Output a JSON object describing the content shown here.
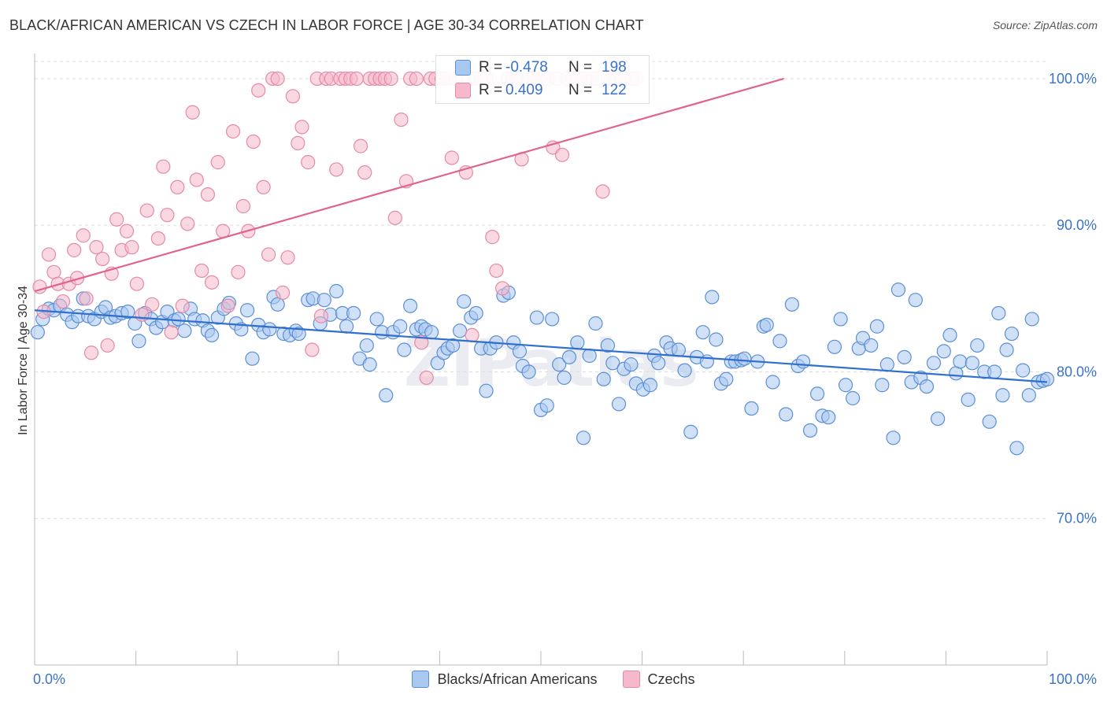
{
  "title": "BLACK/AFRICAN AMERICAN VS CZECH IN LABOR FORCE | AGE 30-34 CORRELATION CHART",
  "source": "Source: ZipAtlas.com",
  "watermark": "ZIPatlas",
  "colors": {
    "blue_fill": "#a9c8f0",
    "blue_stroke": "#5b8fd6",
    "blue_line": "#2f6fcf",
    "pink_fill": "#f6b8cb",
    "pink_stroke": "#e58aa6",
    "pink_line": "#e0648c",
    "tick_label": "#3a72c8",
    "grid": "#dddddd"
  },
  "stats": {
    "row1": {
      "r_label": "R =",
      "r_value": "-0.478",
      "n_label": "N =",
      "n_value": "198"
    },
    "row2": {
      "r_label": "R =",
      "r_value": "0.409",
      "n_label": "N =",
      "n_value": "122"
    }
  },
  "chart_data": {
    "type": "scatter",
    "title": "BLACK/AFRICAN AMERICAN VS CZECH IN LABOR FORCE | AGE 30-34 CORRELATION CHART",
    "xlabel": "",
    "ylabel": "In Labor Force | Age 30-34",
    "xlim": [
      0,
      100
    ],
    "ylim": [
      60,
      101.5
    ],
    "x_tick_labels": [
      "0.0%",
      "100.0%"
    ],
    "y_ticks": [
      70,
      80,
      90,
      100
    ],
    "y_tick_labels": [
      "70.0%",
      "80.0%",
      "90.0%",
      "100.0%"
    ],
    "grid": true,
    "legend_position": "bottom",
    "series": [
      {
        "name": "Blacks/African Americans",
        "color": "#a9c8f0",
        "trend": {
          "x": [
            0,
            100
          ],
          "y": [
            84.2,
            79.3
          ]
        },
        "points": [
          [
            0.3,
            82.7
          ],
          [
            0.8,
            83.6
          ],
          [
            1.4,
            84.3
          ],
          [
            1.9,
            84.2
          ],
          [
            2.5,
            84.5
          ],
          [
            3.2,
            83.9
          ],
          [
            3.7,
            83.4
          ],
          [
            4.3,
            83.8
          ],
          [
            4.8,
            85.0
          ],
          [
            5.3,
            83.8
          ],
          [
            5.9,
            83.6
          ],
          [
            6.6,
            84.1
          ],
          [
            7.0,
            84.4
          ],
          [
            7.5,
            83.7
          ],
          [
            8.0,
            83.8
          ],
          [
            8.6,
            84.0
          ],
          [
            9.2,
            84.1
          ],
          [
            9.9,
            83.3
          ],
          [
            10.3,
            82.1
          ],
          [
            10.9,
            84.0
          ],
          [
            11.5,
            83.6
          ],
          [
            12.0,
            83.0
          ],
          [
            12.6,
            83.4
          ],
          [
            13.1,
            84.1
          ],
          [
            13.8,
            83.5
          ],
          [
            14.2,
            83.6
          ],
          [
            14.8,
            82.8
          ],
          [
            15.4,
            84.3
          ],
          [
            15.8,
            83.6
          ],
          [
            16.6,
            83.5
          ],
          [
            17.1,
            82.8
          ],
          [
            17.5,
            82.5
          ],
          [
            18.1,
            83.7
          ],
          [
            18.7,
            84.3
          ],
          [
            19.2,
            84.7
          ],
          [
            19.9,
            83.3
          ],
          [
            20.4,
            82.9
          ],
          [
            21.0,
            84.2
          ],
          [
            21.5,
            80.9
          ],
          [
            22.1,
            83.2
          ],
          [
            22.6,
            82.7
          ],
          [
            23.2,
            82.9
          ],
          [
            23.6,
            85.1
          ],
          [
            24.0,
            84.6
          ],
          [
            24.6,
            82.6
          ],
          [
            25.2,
            82.5
          ],
          [
            25.8,
            82.8
          ],
          [
            26.1,
            82.6
          ],
          [
            27.0,
            84.9
          ],
          [
            27.5,
            85.0
          ],
          [
            28.2,
            83.3
          ],
          [
            28.6,
            84.9
          ],
          [
            29.2,
            83.9
          ],
          [
            29.8,
            85.5
          ],
          [
            30.4,
            84.0
          ],
          [
            30.8,
            83.1
          ],
          [
            31.5,
            84.0
          ],
          [
            32.1,
            80.9
          ],
          [
            32.8,
            81.8
          ],
          [
            33.1,
            80.5
          ],
          [
            33.8,
            83.6
          ],
          [
            34.3,
            82.7
          ],
          [
            34.7,
            78.4
          ],
          [
            35.4,
            82.7
          ],
          [
            36.1,
            83.1
          ],
          [
            36.5,
            81.5
          ],
          [
            37.1,
            84.5
          ],
          [
            37.7,
            82.9
          ],
          [
            38.2,
            83.1
          ],
          [
            38.6,
            82.9
          ],
          [
            39.2,
            82.7
          ],
          [
            39.8,
            80.6
          ],
          [
            40.4,
            81.3
          ],
          [
            40.8,
            81.6
          ],
          [
            41.3,
            81.8
          ],
          [
            42.0,
            82.8
          ],
          [
            42.4,
            84.8
          ],
          [
            43.1,
            83.7
          ],
          [
            43.6,
            84.0
          ],
          [
            44.1,
            81.6
          ],
          [
            44.6,
            78.7
          ],
          [
            45.0,
            81.6
          ],
          [
            45.6,
            82.0
          ],
          [
            46.3,
            85.2
          ],
          [
            46.8,
            85.4
          ],
          [
            47.3,
            82.0
          ],
          [
            47.9,
            81.4
          ],
          [
            48.2,
            80.4
          ],
          [
            48.8,
            80.0
          ],
          [
            49.6,
            83.7
          ],
          [
            50.0,
            77.4
          ],
          [
            50.6,
            77.7
          ],
          [
            51.1,
            83.6
          ],
          [
            51.8,
            80.5
          ],
          [
            52.3,
            79.6
          ],
          [
            52.8,
            81.0
          ],
          [
            53.6,
            82.0
          ],
          [
            54.2,
            75.5
          ],
          [
            54.8,
            81.1
          ],
          [
            55.4,
            83.3
          ],
          [
            56.2,
            79.5
          ],
          [
            56.6,
            81.8
          ],
          [
            57.1,
            80.6
          ],
          [
            57.7,
            77.8
          ],
          [
            58.2,
            80.2
          ],
          [
            58.9,
            80.5
          ],
          [
            59.4,
            79.2
          ],
          [
            60.1,
            78.8
          ],
          [
            60.8,
            79.1
          ],
          [
            61.2,
            81.1
          ],
          [
            61.6,
            80.6
          ],
          [
            62.4,
            82.0
          ],
          [
            62.8,
            81.6
          ],
          [
            63.6,
            81.5
          ],
          [
            64.2,
            80.1
          ],
          [
            64.8,
            75.9
          ],
          [
            65.4,
            81.0
          ],
          [
            66.0,
            82.7
          ],
          [
            66.4,
            80.7
          ],
          [
            66.9,
            85.1
          ],
          [
            67.3,
            82.2
          ],
          [
            67.8,
            79.2
          ],
          [
            68.3,
            79.5
          ],
          [
            68.8,
            80.7
          ],
          [
            69.2,
            80.7
          ],
          [
            69.8,
            80.8
          ],
          [
            70.1,
            80.9
          ],
          [
            70.8,
            77.5
          ],
          [
            71.4,
            80.7
          ],
          [
            72.0,
            83.1
          ],
          [
            72.3,
            83.2
          ],
          [
            72.9,
            79.3
          ],
          [
            73.6,
            82.1
          ],
          [
            74.2,
            77.1
          ],
          [
            74.8,
            84.6
          ],
          [
            75.4,
            80.4
          ],
          [
            75.9,
            80.7
          ],
          [
            76.6,
            76.0
          ],
          [
            77.3,
            78.5
          ],
          [
            77.8,
            77.0
          ],
          [
            78.4,
            76.9
          ],
          [
            79.0,
            81.7
          ],
          [
            79.6,
            83.6
          ],
          [
            80.1,
            79.1
          ],
          [
            80.8,
            78.2
          ],
          [
            81.4,
            81.6
          ],
          [
            81.8,
            82.3
          ],
          [
            82.6,
            81.8
          ],
          [
            83.2,
            83.1
          ],
          [
            83.7,
            79.1
          ],
          [
            84.2,
            80.5
          ],
          [
            84.8,
            75.5
          ],
          [
            85.3,
            85.6
          ],
          [
            85.9,
            81.0
          ],
          [
            86.6,
            79.3
          ],
          [
            87.0,
            84.9
          ],
          [
            87.5,
            79.6
          ],
          [
            88.1,
            79.0
          ],
          [
            88.8,
            80.6
          ],
          [
            89.2,
            76.8
          ],
          [
            89.8,
            81.4
          ],
          [
            90.4,
            82.5
          ],
          [
            91.0,
            79.9
          ],
          [
            91.4,
            80.7
          ],
          [
            92.2,
            78.1
          ],
          [
            92.6,
            80.6
          ],
          [
            93.1,
            81.8
          ],
          [
            93.8,
            80.0
          ],
          [
            94.3,
            76.6
          ],
          [
            94.8,
            80.0
          ],
          [
            95.6,
            78.4
          ],
          [
            95.2,
            84.0
          ],
          [
            96.0,
            81.5
          ],
          [
            96.5,
            82.6
          ],
          [
            97.0,
            74.8
          ],
          [
            97.6,
            80.1
          ],
          [
            98.2,
            78.4
          ],
          [
            98.5,
            83.6
          ],
          [
            99.1,
            79.3
          ],
          [
            99.6,
            79.4
          ],
          [
            100.0,
            79.5
          ]
        ]
      },
      {
        "name": "Czechs",
        "color": "#f6b8cb",
        "trend": {
          "x": [
            0,
            74
          ],
          "y": [
            85.5,
            100.0
          ]
        },
        "points": [
          [
            0.5,
            85.8
          ],
          [
            0.9,
            84.1
          ],
          [
            1.4,
            88.0
          ],
          [
            1.9,
            86.8
          ],
          [
            2.3,
            86.0
          ],
          [
            2.8,
            84.8
          ],
          [
            3.4,
            86.0
          ],
          [
            3.9,
            88.3
          ],
          [
            4.2,
            86.4
          ],
          [
            4.8,
            89.3
          ],
          [
            5.1,
            85.0
          ],
          [
            5.6,
            81.3
          ],
          [
            6.1,
            88.5
          ],
          [
            6.7,
            87.7
          ],
          [
            7.2,
            81.8
          ],
          [
            7.6,
            86.7
          ],
          [
            8.1,
            90.4
          ],
          [
            8.6,
            88.3
          ],
          [
            9.1,
            89.6
          ],
          [
            9.6,
            88.5
          ],
          [
            10.1,
            86.0
          ],
          [
            10.6,
            83.9
          ],
          [
            11.1,
            91.0
          ],
          [
            11.6,
            84.6
          ],
          [
            12.2,
            89.1
          ],
          [
            12.7,
            94.0
          ],
          [
            13.1,
            90.7
          ],
          [
            13.5,
            82.7
          ],
          [
            14.1,
            92.6
          ],
          [
            14.6,
            84.5
          ],
          [
            15.1,
            90.1
          ],
          [
            15.6,
            97.7
          ],
          [
            16.0,
            93.1
          ],
          [
            16.5,
            86.9
          ],
          [
            17.1,
            92.1
          ],
          [
            17.5,
            86.1
          ],
          [
            18.1,
            94.3
          ],
          [
            18.6,
            89.6
          ],
          [
            19.1,
            84.5
          ],
          [
            19.6,
            96.4
          ],
          [
            20.1,
            86.8
          ],
          [
            20.6,
            91.3
          ],
          [
            21.1,
            89.6
          ],
          [
            21.6,
            95.7
          ],
          [
            22.1,
            99.2
          ],
          [
            22.6,
            92.6
          ],
          [
            23.1,
            88.0
          ],
          [
            23.5,
            100.0
          ],
          [
            24.0,
            100.0
          ],
          [
            24.5,
            85.4
          ],
          [
            25.0,
            87.8
          ],
          [
            25.5,
            98.8
          ],
          [
            26.0,
            95.6
          ],
          [
            26.4,
            96.7
          ],
          [
            27.0,
            94.3
          ],
          [
            27.4,
            81.5
          ],
          [
            27.9,
            100.0
          ],
          [
            28.3,
            83.8
          ],
          [
            28.8,
            100.0
          ],
          [
            29.3,
            100.0
          ],
          [
            29.8,
            93.8
          ],
          [
            30.2,
            100.0
          ],
          [
            30.7,
            100.0
          ],
          [
            31.2,
            100.0
          ],
          [
            31.8,
            100.0
          ],
          [
            32.2,
            95.4
          ],
          [
            32.6,
            93.6
          ],
          [
            33.1,
            100.0
          ],
          [
            33.6,
            100.0
          ],
          [
            34.1,
            100.0
          ],
          [
            34.6,
            100.0
          ],
          [
            35.2,
            100.0
          ],
          [
            35.6,
            90.5
          ],
          [
            36.2,
            97.2
          ],
          [
            36.7,
            93.0
          ],
          [
            37.1,
            100.0
          ],
          [
            37.7,
            100.0
          ],
          [
            38.2,
            82.0
          ],
          [
            38.7,
            79.6
          ],
          [
            39.1,
            100.0
          ],
          [
            39.6,
            100.0
          ],
          [
            40.2,
            100.0
          ],
          [
            40.7,
            100.0
          ],
          [
            41.2,
            94.6
          ],
          [
            41.6,
            100.0
          ],
          [
            42.2,
            100.0
          ],
          [
            42.6,
            93.6
          ],
          [
            43.2,
            82.5
          ],
          [
            43.6,
            100.0
          ],
          [
            44.1,
            100.0
          ],
          [
            44.6,
            100.0
          ],
          [
            45.2,
            89.2
          ],
          [
            45.6,
            86.9
          ],
          [
            46.2,
            85.7
          ],
          [
            46.7,
            100.0
          ],
          [
            47.2,
            100.0
          ],
          [
            47.7,
            100.0
          ],
          [
            48.1,
            94.5
          ],
          [
            48.7,
            100.0
          ],
          [
            49.2,
            100.0
          ],
          [
            49.7,
            100.0
          ],
          [
            50.2,
            100.0
          ],
          [
            50.7,
            100.0
          ],
          [
            51.2,
            95.3
          ],
          [
            51.6,
            100.0
          ],
          [
            52.1,
            94.8
          ],
          [
            52.6,
            100.0
          ],
          [
            53.1,
            100.0
          ],
          [
            53.6,
            100.0
          ],
          [
            54.1,
            100.0
          ],
          [
            54.6,
            100.0
          ],
          [
            55.1,
            100.0
          ],
          [
            55.6,
            100.0
          ],
          [
            56.1,
            92.3
          ],
          [
            56.6,
            100.0
          ],
          [
            57.1,
            100.0
          ],
          [
            57.5,
            100.0
          ],
          [
            58.0,
            100.0
          ],
          [
            58.5,
            100.0
          ],
          [
            59.0,
            100.0
          ],
          [
            59.5,
            100.0
          ]
        ]
      }
    ]
  }
}
